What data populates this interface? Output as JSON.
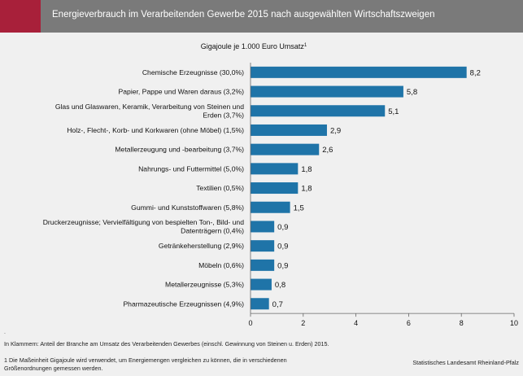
{
  "header": {
    "title": "Energieverbrauch im Verarbeitenden Gewerbe 2015 nach ausgewählten Wirtschaftszweigen",
    "accent_color": "#a8203a",
    "bar_color": "#7a7a7a"
  },
  "chart_data": {
    "type": "bar",
    "orientation": "horizontal",
    "unit_label": "Gigajoule je 1.000 Euro Umsatz",
    "unit_superscript": "1",
    "categories": [
      [
        "Chemische Erzeugnisse (30,0%)"
      ],
      [
        "Papier, Pappe und Waren daraus (3,2%)"
      ],
      [
        "Glas und Glaswaren, Keramik, Verarbeitung von Steinen und",
        "Erden (3,7%)"
      ],
      [
        "Holz-, Flecht-, Korb- und Korkwaren (ohne Möbel) (1,5%)"
      ],
      [
        "Metallerzeugung und -bearbeitung (3,7%)"
      ],
      [
        "Nahrungs- und Futtermittel (5,0%)"
      ],
      [
        "Textilien (0,5%)"
      ],
      [
        "Gummi- und Kunststoffwaren (5,8%)"
      ],
      [
        "Druckerzeugnisse; Vervielfältigung von bespielten Ton-, Bild- und",
        "Datenträgern (0,4%)"
      ],
      [
        "Getränkeherstellung (2,9%)"
      ],
      [
        "Möbeln (0,6%)"
      ],
      [
        "Metallerzeugnisse (5,3%)"
      ],
      [
        "Pharmazeutische Erzeugnissen (4,9%)"
      ]
    ],
    "values": [
      8.2,
      5.8,
      5.1,
      2.9,
      2.6,
      1.8,
      1.8,
      1.5,
      0.9,
      0.9,
      0.9,
      0.8,
      0.7
    ],
    "value_labels": [
      "8,2",
      "5,8",
      "5,1",
      "2,9",
      "2,6",
      "1,8",
      "1,8",
      "1,5",
      "0,9",
      "0,9",
      "0,9",
      "0,8",
      "0,7"
    ],
    "xlim": [
      0,
      10
    ],
    "xticks": [
      0,
      2,
      4,
      6,
      8,
      10
    ],
    "xtick_labels": [
      "0",
      "2",
      "4",
      "6",
      "8",
      "10"
    ],
    "bar_color": "#1f74a8",
    "grid": false
  },
  "footer": {
    "marker": ".",
    "note_brackets": "In Klammern: Anteil der Branche am Umsatz des Verarbeitenden Gewerbes (einschl. Gewinnung von Steinen u. Erden) 2015.",
    "note_unit": "1 Die Maßeinheit Gigajoule wird verwendet, um Energiemengen vergleichen zu können, die in verschiedenen Größenordnungen gemessen werden.",
    "source": "Statistisches Landesamt Rheinland-Pfalz"
  }
}
